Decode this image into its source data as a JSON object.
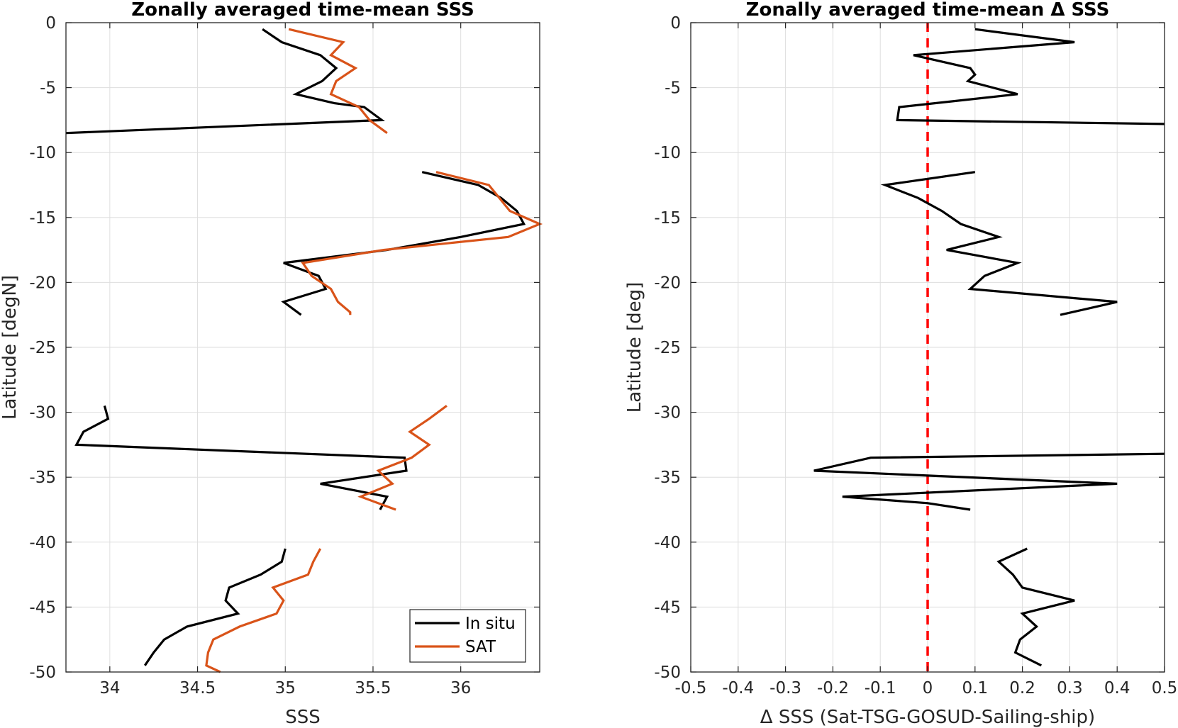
{
  "chart_data": [
    {
      "type": "line",
      "title": "Zonally averaged time-mean SSS",
      "xlabel": "SSS",
      "ylabel": "Latitude [degN]",
      "xlim": [
        33.75,
        36.45
      ],
      "ylim": [
        -50,
        0
      ],
      "xticks": [
        34,
        34.5,
        35,
        35.5,
        36
      ],
      "xtick_labels": [
        "34",
        "34.5",
        "35",
        "35.5",
        "36"
      ],
      "yticks": [
        0,
        -5,
        -10,
        -15,
        -20,
        -25,
        -30,
        -35,
        -40,
        -45,
        -50
      ],
      "ytick_labels": [
        "0",
        "-5",
        "-10",
        "-15",
        "-20",
        "-25",
        "-30",
        "-35",
        "-40",
        "-45",
        "-50"
      ],
      "grid": true,
      "legend_position": "bottom-right",
      "series": [
        {
          "name": "In situ",
          "color": "#000000",
          "segments": [
            [
              [
                34.87,
                -0.5
              ],
              [
                34.98,
                -1.5
              ],
              [
                35.2,
                -2.5
              ],
              [
                35.29,
                -3.5
              ],
              [
                35.21,
                -4.5
              ],
              [
                35.06,
                -5.5
              ],
              [
                35.28,
                -6.2
              ],
              [
                35.45,
                -6.5
              ],
              [
                35.55,
                -7.5
              ],
              [
                33.75,
                -8.5
              ]
            ],
            [
              [
                35.78,
                -11.5
              ],
              [
                36.1,
                -12.5
              ],
              [
                36.23,
                -13.5
              ],
              [
                36.32,
                -14.5
              ],
              [
                36.36,
                -15.5
              ],
              [
                36.0,
                -16.5
              ],
              [
                35.58,
                -17.5
              ],
              [
                34.99,
                -18.5
              ],
              [
                35.19,
                -19.5
              ],
              [
                35.23,
                -20.5
              ],
              [
                34.99,
                -21.5
              ],
              [
                35.09,
                -22.5
              ]
            ],
            [
              [
                33.97,
                -29.5
              ],
              [
                33.99,
                -30.5
              ],
              [
                33.85,
                -31.5
              ],
              [
                33.81,
                -32.5
              ],
              [
                35.68,
                -33.5
              ],
              [
                35.69,
                -34.5
              ],
              [
                35.2,
                -35.5
              ],
              [
                35.58,
                -36.5
              ],
              [
                35.54,
                -37.5
              ]
            ],
            [
              [
                35.0,
                -40.5
              ],
              [
                34.98,
                -41.5
              ],
              [
                34.86,
                -42.5
              ],
              [
                34.68,
                -43.5
              ],
              [
                34.66,
                -44.5
              ],
              [
                34.73,
                -45.5
              ],
              [
                34.44,
                -46.5
              ],
              [
                34.31,
                -47.5
              ],
              [
                34.25,
                -48.5
              ],
              [
                34.2,
                -49.5
              ]
            ]
          ]
        },
        {
          "name": "SAT",
          "color": "#d95319",
          "segments": [
            [
              [
                35.02,
                -0.5
              ],
              [
                35.33,
                -1.5
              ],
              [
                35.26,
                -2.5
              ],
              [
                35.4,
                -3.5
              ],
              [
                35.29,
                -4.5
              ],
              [
                35.26,
                -5.5
              ],
              [
                35.42,
                -6.5
              ],
              [
                35.48,
                -7.5
              ],
              [
                35.58,
                -8.5
              ]
            ],
            [
              [
                35.86,
                -11.5
              ],
              [
                36.16,
                -12.5
              ],
              [
                36.28,
                -14.5
              ],
              [
                36.45,
                -15.5
              ],
              [
                36.27,
                -16.5
              ],
              [
                35.56,
                -17.5
              ],
              [
                35.1,
                -18.5
              ],
              [
                35.15,
                -19.5
              ],
              [
                35.26,
                -20.5
              ],
              [
                35.3,
                -21.5
              ],
              [
                35.37,
                -22.3
              ],
              [
                35.37,
                -22.5
              ]
            ],
            [
              [
                35.92,
                -29.5
              ],
              [
                35.82,
                -30.5
              ],
              [
                35.71,
                -31.5
              ],
              [
                35.82,
                -32.5
              ],
              [
                35.72,
                -33.5
              ],
              [
                35.53,
                -34.5
              ],
              [
                35.61,
                -35.5
              ],
              [
                35.43,
                -36.5
              ],
              [
                35.63,
                -37.5
              ]
            ],
            [
              [
                35.2,
                -40.5
              ],
              [
                35.16,
                -41.5
              ],
              [
                35.13,
                -42.5
              ],
              [
                34.93,
                -43.5
              ],
              [
                34.99,
                -44.5
              ],
              [
                34.95,
                -45.5
              ],
              [
                34.74,
                -46.5
              ],
              [
                34.59,
                -47.5
              ],
              [
                34.56,
                -48.5
              ],
              [
                34.55,
                -49.5
              ],
              [
                34.63,
                -50.0
              ]
            ]
          ]
        }
      ]
    },
    {
      "type": "line",
      "title": "Zonally averaged time-mean Δ SSS",
      "xlabel": "Δ SSS (Sat-TSG-GOSUD-Sailing-ship)",
      "ylabel": "Latitude [deg]",
      "xlim": [
        -0.5,
        0.5
      ],
      "ylim": [
        -50,
        0
      ],
      "xticks": [
        -0.5,
        -0.4,
        -0.3,
        -0.2,
        -0.1,
        0,
        0.1,
        0.2,
        0.3,
        0.4,
        0.5
      ],
      "xtick_labels": [
        "-0.5",
        "-0.4",
        "-0.3",
        "-0.2",
        "-0.1",
        "0",
        "0.1",
        "0.2",
        "0.3",
        "0.4",
        "0.5"
      ],
      "yticks": [
        0,
        -5,
        -10,
        -15,
        -20,
        -25,
        -30,
        -35,
        -40,
        -45,
        -50
      ],
      "ytick_labels": [
        "0",
        "-5",
        "-10",
        "-15",
        "-20",
        "-25",
        "-30",
        "-35",
        "-40",
        "-45",
        "-50"
      ],
      "grid": true,
      "reference_line": {
        "x": 0,
        "color": "#ff0000",
        "style": "dashed"
      },
      "series": [
        {
          "name": "",
          "color": "#000000",
          "segments": [
            [
              [
                0.1,
                -0.5
              ],
              [
                0.31,
                -1.5
              ],
              [
                -0.03,
                -2.5
              ],
              [
                0.09,
                -3.5
              ],
              [
                0.1,
                -4.0
              ],
              [
                0.085,
                -4.5
              ],
              [
                0.19,
                -5.5
              ],
              [
                -0.06,
                -6.5
              ],
              [
                -0.064,
                -7.5
              ],
              [
                0.5,
                -7.8
              ]
            ],
            [
              [
                0.1,
                -11.5
              ],
              [
                -0.09,
                -12.5
              ],
              [
                -0.02,
                -13.5
              ],
              [
                0.03,
                -14.5
              ],
              [
                0.07,
                -15.5
              ],
              [
                0.15,
                -16.5
              ],
              [
                0.04,
                -17.5
              ],
              [
                0.19,
                -18.5
              ],
              [
                0.12,
                -19.5
              ],
              [
                0.09,
                -20.5
              ],
              [
                0.4,
                -21.5
              ],
              [
                0.28,
                -22.5
              ]
            ],
            [
              [
                0.5,
                -33.2
              ],
              [
                -0.12,
                -33.5
              ],
              [
                -0.24,
                -34.5
              ],
              [
                0.4,
                -35.5
              ],
              [
                -0.18,
                -36.5
              ],
              [
                0.0,
                -37.0
              ],
              [
                0.09,
                -37.5
              ]
            ],
            [
              [
                0.21,
                -40.5
              ],
              [
                0.15,
                -41.5
              ],
              [
                0.18,
                -42.5
              ],
              [
                0.2,
                -43.5
              ],
              [
                0.31,
                -44.5
              ],
              [
                0.2,
                -45.5
              ],
              [
                0.23,
                -46.5
              ],
              [
                0.195,
                -47.5
              ],
              [
                0.185,
                -48.5
              ],
              [
                0.24,
                -49.5
              ]
            ]
          ]
        }
      ]
    }
  ]
}
